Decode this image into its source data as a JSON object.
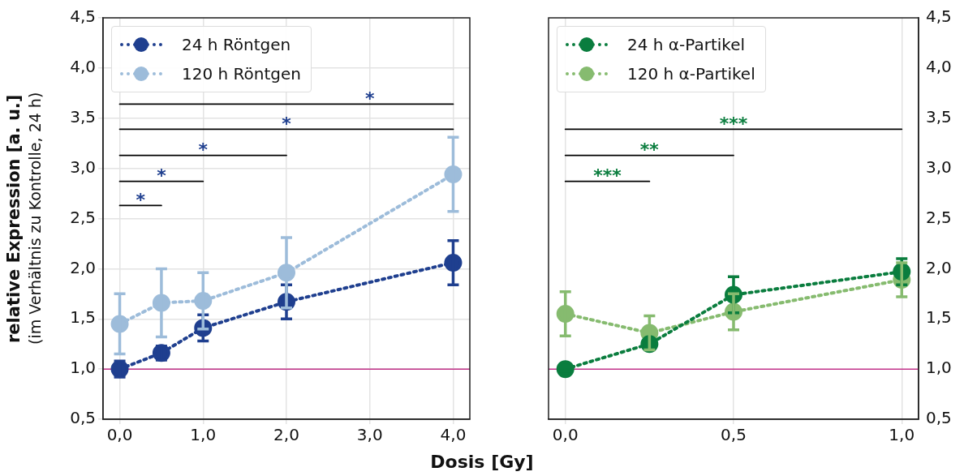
{
  "chart_data": [
    {
      "type": "line",
      "xlabel": "Dosis [Gy]",
      "ylabel": "relative Expression [a. u.]\n(im Verhältnis zu Kontrolle, 24 h)",
      "x": [
        0,
        0.5,
        1,
        2,
        4
      ],
      "xlim": [
        -0.2,
        4.2
      ],
      "xticks": [
        {
          "value": 0,
          "label": "0,0"
        },
        {
          "value": 1,
          "label": "1,0"
        },
        {
          "value": 2,
          "label": "2,0"
        },
        {
          "value": 3,
          "label": "3,0"
        },
        {
          "value": 4,
          "label": "4,0"
        }
      ],
      "ylim": [
        0.5,
        4.5
      ],
      "yticks": [
        {
          "value": 0.5,
          "label": "0,5"
        },
        {
          "value": 1,
          "label": "1,0"
        },
        {
          "value": 1.5,
          "label": "1,5"
        },
        {
          "value": 2,
          "label": "2,0"
        },
        {
          "value": 2.5,
          "label": "2,5"
        },
        {
          "value": 3,
          "label": "3,0"
        },
        {
          "value": 3.5,
          "label": "3,5"
        },
        {
          "value": 4,
          "label": "4,0"
        },
        {
          "value": 4.5,
          "label": "4,5"
        }
      ],
      "grid": true,
      "legend": "top left",
      "marker": "circle",
      "line_style": "dotted",
      "series": [
        {
          "name": "24 h Röntgen",
          "color": "#1f3f8f",
          "values": [
            1.0,
            1.16,
            1.41,
            1.67,
            2.06
          ],
          "errors": [
            0.08,
            0.07,
            0.13,
            0.17,
            0.22
          ]
        },
        {
          "name": "120 h Röntgen",
          "color": "#9dbcda",
          "values": [
            1.45,
            1.66,
            1.68,
            1.96,
            2.94
          ],
          "errors": [
            0.3,
            0.34,
            0.28,
            0.35,
            0.37
          ]
        },
        {
          "type": "line",
          "color": "#000000",
          "x": [
            0,
            4
          ],
          "values": [
            3.64,
            3.64
          ],
          "marker": "none",
          "line_style": "solid"
        },
        {
          "type": "line",
          "color": "#000000",
          "x": [
            0,
            4
          ],
          "values": [
            3.39,
            3.39
          ],
          "marker": "none",
          "line_style": "solid"
        },
        {
          "type": "line",
          "color": "#000000",
          "x": [
            0,
            2
          ],
          "values": [
            3.13,
            3.13
          ],
          "marker": "none",
          "line_style": "solid"
        },
        {
          "type": "line",
          "color": "#000000",
          "x": [
            0,
            1
          ],
          "values": [
            2.87,
            2.87
          ],
          "marker": "none",
          "line_style": "solid"
        },
        {
          "type": "line",
          "color": "#000000",
          "x": [
            0,
            0.5
          ],
          "values": [
            2.63,
            2.63
          ],
          "marker": "none",
          "line_style": "solid"
        }
      ],
      "ref_lines": [
        {
          "axis": "y",
          "value": 1,
          "color": "#c2338a"
        }
      ],
      "annotations": [
        {
          "text": "*",
          "x": 3,
          "y": 3.68
        },
        {
          "text": "*",
          "x": 2,
          "y": 3.43
        },
        {
          "text": "*",
          "x": 1,
          "y": 3.17
        },
        {
          "text": "*",
          "x": 0.5,
          "y": 2.91
        },
        {
          "text": "*",
          "x": 0.25,
          "y": 2.67
        }
      ]
    },
    {
      "type": "line",
      "x": [
        0,
        0.25,
        0.5,
        1
      ],
      "xlim": [
        -0.05,
        1.05
      ],
      "xticks": [
        {
          "value": 0,
          "label": "0,0"
        },
        {
          "value": 0.5,
          "label": "0,5"
        },
        {
          "value": 1,
          "label": "1,0"
        }
      ],
      "ylim": [
        0.5,
        4.5
      ],
      "y2lim": [
        0.5,
        4.5
      ],
      "y2ticks": [
        {
          "value": 0.5,
          "label": "0,5"
        },
        {
          "value": 1,
          "label": "1,0"
        },
        {
          "value": 1.5,
          "label": "1,5"
        },
        {
          "value": 2,
          "label": "2,0"
        },
        {
          "value": 2.5,
          "label": "2,5"
        },
        {
          "value": 3,
          "label": "3,0"
        },
        {
          "value": 3.5,
          "label": "3,5"
        },
        {
          "value": 4,
          "label": "4,0"
        },
        {
          "value": 4.5,
          "label": "4,5"
        }
      ],
      "grid": true,
      "legend": "top left",
      "marker": "circle",
      "line_style": "dotted",
      "series": [
        {
          "name": "24 h α-Partikel",
          "color": "#0a7d3e",
          "values": [
            1.0,
            1.25,
            1.74,
            1.97
          ],
          "errors": [
            0.02,
            0.05,
            0.18,
            0.13
          ]
        },
        {
          "name": "120 h α-Partikel",
          "color": "#86bb6f",
          "values": [
            1.55,
            1.36,
            1.57,
            1.89
          ],
          "errors": [
            0.22,
            0.17,
            0.18,
            0.17
          ]
        },
        {
          "type": "line",
          "color": "#000000",
          "x": [
            0,
            1
          ],
          "values": [
            3.39,
            3.39
          ],
          "marker": "none",
          "line_style": "solid"
        },
        {
          "type": "line",
          "color": "#000000",
          "x": [
            0,
            0.5
          ],
          "values": [
            3.13,
            3.13
          ],
          "marker": "none",
          "line_style": "solid"
        },
        {
          "type": "line",
          "color": "#000000",
          "x": [
            0,
            0.25
          ],
          "values": [
            2.87,
            2.87
          ],
          "marker": "none",
          "line_style": "solid"
        }
      ],
      "ref_lines": [
        {
          "axis": "y2",
          "value": 1,
          "color": "#c2338a"
        }
      ],
      "annotations": [
        {
          "text": "***",
          "x": 0.5,
          "y": 3.43
        },
        {
          "text": "**",
          "x": 0.25,
          "y": 3.17
        },
        {
          "text": "***",
          "x": 0.125,
          "y": 2.91
        }
      ]
    }
  ]
}
